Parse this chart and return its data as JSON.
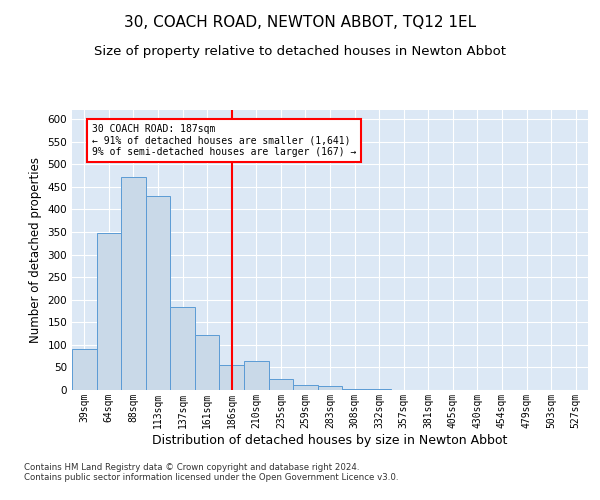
{
  "title": "30, COACH ROAD, NEWTON ABBOT, TQ12 1EL",
  "subtitle": "Size of property relative to detached houses in Newton Abbot",
  "xlabel": "Distribution of detached houses by size in Newton Abbot",
  "ylabel": "Number of detached properties",
  "categories": [
    "39sqm",
    "64sqm",
    "88sqm",
    "113sqm",
    "137sqm",
    "161sqm",
    "186sqm",
    "210sqm",
    "235sqm",
    "259sqm",
    "283sqm",
    "308sqm",
    "332sqm",
    "357sqm",
    "381sqm",
    "405sqm",
    "430sqm",
    "454sqm",
    "479sqm",
    "503sqm",
    "527sqm"
  ],
  "values": [
    90,
    348,
    472,
    430,
    183,
    122,
    55,
    65,
    24,
    11,
    8,
    3,
    2,
    1,
    1,
    1,
    0,
    0,
    0,
    0,
    0
  ],
  "bar_color": "#c9d9e8",
  "bar_edge_color": "#5b9bd5",
  "vline_x_index": 6,
  "vline_color": "red",
  "annotation_text": "30 COACH ROAD: 187sqm\n← 91% of detached houses are smaller (1,641)\n9% of semi-detached houses are larger (167) →",
  "annotation_box_color": "white",
  "annotation_box_edge_color": "red",
  "ylim": [
    0,
    620
  ],
  "yticks": [
    0,
    50,
    100,
    150,
    200,
    250,
    300,
    350,
    400,
    450,
    500,
    550,
    600
  ],
  "footnote": "Contains HM Land Registry data © Crown copyright and database right 2024.\nContains public sector information licensed under the Open Government Licence v3.0.",
  "background_color": "#dce8f5",
  "title_fontsize": 11,
  "subtitle_fontsize": 9.5,
  "xlabel_fontsize": 9,
  "ylabel_fontsize": 8.5
}
